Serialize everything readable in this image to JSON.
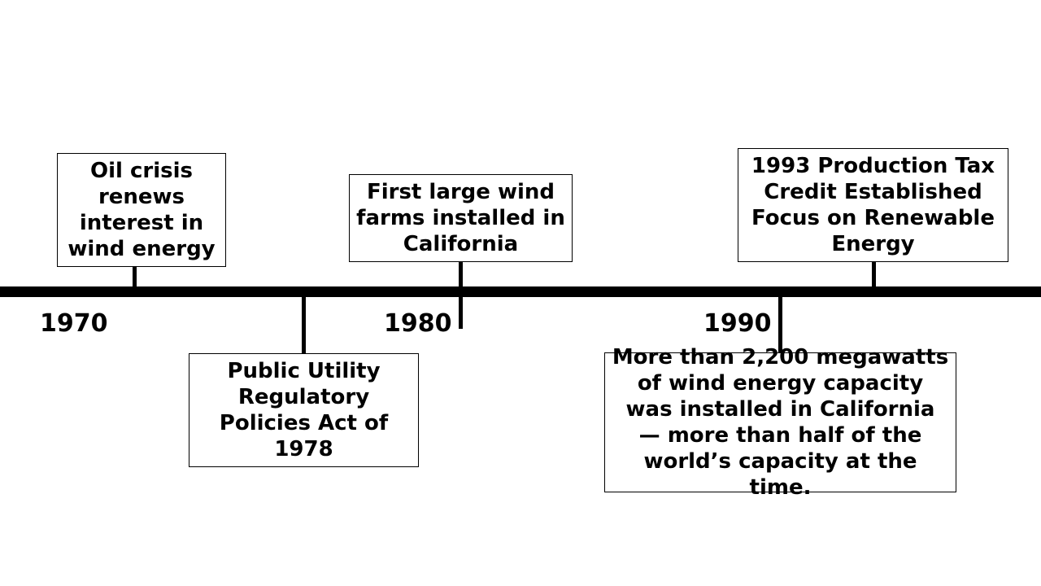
{
  "years": {
    "y1970": "1970",
    "y1980": "1980",
    "y1990": "1990"
  },
  "events": {
    "oil_crisis": "Oil crisis renews interest in wind energy",
    "purpa": "Public Utility Regulatory Policies Act of 1978",
    "first_wind_farms": "First large wind farms installed in California",
    "california_capacity": "More than 2,200 megawatts of wind energy capacity was installed in California — more than half of the world’s capacity at the time.",
    "tax_credit": "1993 Production Tax Credit Established Focus on Renewable Energy"
  },
  "colors": {
    "line": "#000000",
    "background": "#ffffff"
  }
}
